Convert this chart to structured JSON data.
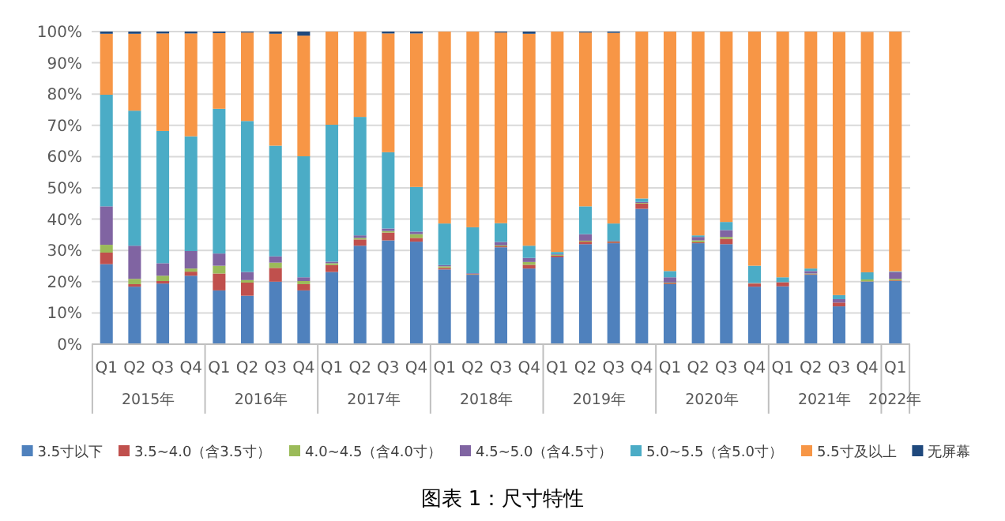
{
  "chart_data": {
    "type": "bar",
    "stacked": true,
    "title": "图表 1：尺寸特性",
    "categories": [
      "Q1",
      "Q2",
      "Q3",
      "Q4",
      "Q1",
      "Q2",
      "Q3",
      "Q4",
      "Q1",
      "Q2",
      "Q3",
      "Q4",
      "Q1",
      "Q2",
      "Q3",
      "Q4",
      "Q1",
      "Q2",
      "Q3",
      "Q4",
      "Q1",
      "Q2",
      "Q3",
      "Q4",
      "Q1",
      "Q2",
      "Q3",
      "Q4",
      "Q1"
    ],
    "annotations": [
      "2015年",
      "2016年",
      "2017年",
      "2018年",
      "2019年",
      "2020年",
      "2021年",
      "2022年"
    ],
    "series": [
      {
        "name": "3.5寸以下",
        "color": "#4f81bd",
        "values": [
          25.6,
          18.4,
          19.4,
          21.9,
          17.2,
          15.5,
          20.0,
          17.2,
          23.1,
          31.5,
          33.2,
          32.8,
          23.9,
          22.2,
          31.0,
          24.2,
          27.8,
          32.0,
          32.3,
          43.3,
          19.2,
          32.3,
          32.0,
          18.4,
          18.5,
          22.2,
          12.1,
          20.0,
          20.2
        ]
      },
      {
        "name": "3.5~4.0（含3.5寸）",
        "color": "#c0504d",
        "values": [
          3.7,
          0.8,
          0.8,
          1.3,
          5.4,
          4.2,
          4.4,
          2.0,
          2.2,
          2.0,
          2.5,
          1.2,
          0.5,
          0.2,
          0.3,
          1.2,
          0.5,
          0.8,
          0.3,
          1.7,
          0.3,
          0.3,
          1.7,
          1.0,
          1.2,
          0.2,
          1.2,
          0.1,
          0.2
        ]
      },
      {
        "name": "4.0~4.5（含4.0寸）",
        "color": "#9bbb59",
        "values": [
          2.5,
          1.7,
          1.7,
          1.0,
          2.5,
          0.8,
          1.7,
          1.0,
          0.6,
          0.5,
          0.5,
          1.2,
          0.5,
          0.1,
          0.3,
          0.9,
          0.3,
          0.3,
          0.2,
          0.2,
          0.2,
          0.6,
          0.6,
          0.1,
          0.1,
          0.2,
          null,
          0.6,
          0.5
        ]
      },
      {
        "name": "4.5~5.0（含4.5寸）",
        "color": "#8064a2",
        "values": [
          12.3,
          10.6,
          4.0,
          5.6,
          3.9,
          2.6,
          2.0,
          1.2,
          0.5,
          0.8,
          0.8,
          0.8,
          0.4,
          0.2,
          1.1,
          1.3,
          0.2,
          2.1,
          0.3,
          0.3,
          1.7,
          1.1,
          2.2,
          0.1,
          0.1,
          0.8,
          1.1,
          null,
          2.2
        ]
      },
      {
        "name": "5.0~5.5（含5.0寸）",
        "color": "#4bacc6",
        "values": [
          35.7,
          43.2,
          42.3,
          36.7,
          46.3,
          48.3,
          35.4,
          38.7,
          43.8,
          37.9,
          24.4,
          14.3,
          13.3,
          14.7,
          6.0,
          3.9,
          0.7,
          8.9,
          5.5,
          1.1,
          2.0,
          0.5,
          2.6,
          5.5,
          1.5,
          0.8,
          1.3,
          2.3,
          0.2
        ]
      },
      {
        "name": "5.5寸及以上",
        "color": "#f79646",
        "values": [
          19.5,
          24.6,
          31.2,
          32.9,
          24.2,
          28.3,
          35.8,
          38.6,
          29.8,
          27.3,
          38.0,
          49.1,
          61.4,
          62.6,
          61.0,
          67.8,
          70.5,
          55.6,
          61.0,
          53.4,
          76.6,
          65.2,
          60.9,
          74.9,
          78.6,
          75.8,
          84.2,
          76.9,
          76.7
        ]
      },
      {
        "name": "无屏幕",
        "color": "#1f497d",
        "values": [
          0.7,
          0.7,
          0.6,
          0.6,
          0.5,
          0.3,
          0.7,
          1.3,
          0,
          0,
          0.6,
          0.6,
          0,
          0,
          0.3,
          0.7,
          0,
          0.3,
          0.4,
          0,
          0,
          0,
          0,
          0,
          0,
          0,
          0,
          0,
          0
        ]
      }
    ],
    "ylim": [
      0,
      100
    ],
    "yticks": [
      {
        "value": 0,
        "label": "0%"
      },
      {
        "value": 10,
        "label": "10%"
      },
      {
        "value": 20,
        "label": "20%"
      },
      {
        "value": 30,
        "label": "30%"
      },
      {
        "value": 40,
        "label": "40%"
      },
      {
        "value": 50,
        "label": "50%"
      },
      {
        "value": 60,
        "label": "60%"
      },
      {
        "value": 70,
        "label": "70%"
      },
      {
        "value": 80,
        "label": "80%"
      },
      {
        "value": 90,
        "label": "90%"
      },
      {
        "value": 100,
        "label": "100%"
      }
    ],
    "grid": "y",
    "legend": "bottom"
  }
}
